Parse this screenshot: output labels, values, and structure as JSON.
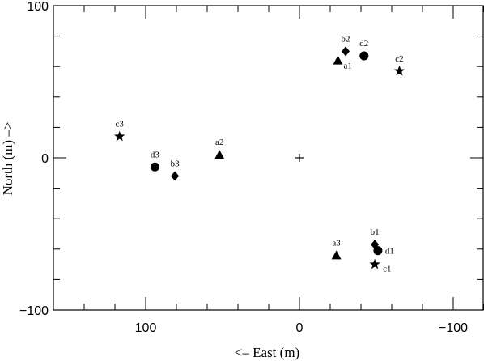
{
  "chart_data": {
    "type": "scatter",
    "title": "",
    "xlabel": "<– East (m)",
    "ylabel": "North (m) –>",
    "xlim": [
      160,
      -120
    ],
    "ylim": [
      -100,
      100
    ],
    "x_ticks": [
      100,
      0,
      -100
    ],
    "x_tick_labels": [
      "100",
      "0",
      "−100"
    ],
    "y_ticks": [
      -100,
      0,
      100
    ],
    "y_tick_labels": [
      "−100",
      "0",
      "100"
    ],
    "grid": false,
    "center_marker": {
      "x": 0,
      "y": 0,
      "symbol": "plus"
    },
    "points": [
      {
        "label": "a1",
        "x": -25,
        "y": 64,
        "marker": "triangle"
      },
      {
        "label": "a2",
        "x": 52,
        "y": 2,
        "marker": "triangle"
      },
      {
        "label": "a3",
        "x": -24,
        "y": -64,
        "marker": "triangle"
      },
      {
        "label": "b1",
        "x": -49,
        "y": -57,
        "marker": "diamond"
      },
      {
        "label": "b2",
        "x": -30,
        "y": 70,
        "marker": "diamond"
      },
      {
        "label": "b3",
        "x": 81,
        "y": -12,
        "marker": "diamond"
      },
      {
        "label": "c1",
        "x": -49,
        "y": -70,
        "marker": "star"
      },
      {
        "label": "c2",
        "x": -65,
        "y": 57,
        "marker": "star"
      },
      {
        "label": "c3",
        "x": 117,
        "y": 14,
        "marker": "star"
      },
      {
        "label": "d1",
        "x": -51,
        "y": -61,
        "marker": "circle"
      },
      {
        "label": "d2",
        "x": -42,
        "y": 67,
        "marker": "circle"
      },
      {
        "label": "d3",
        "x": 94,
        "y": -6,
        "marker": "circle"
      }
    ]
  }
}
